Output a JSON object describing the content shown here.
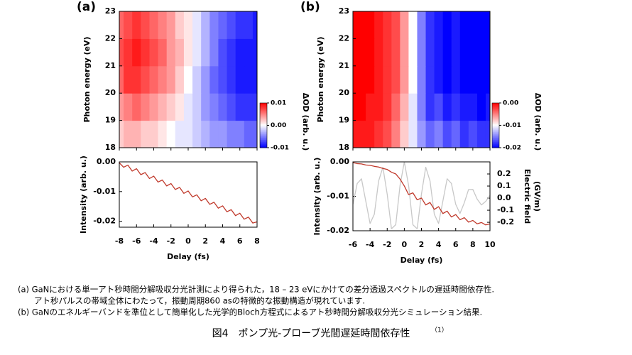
{
  "chart_data": [
    {
      "type": "heatmap",
      "panel_label": "(a)",
      "x": [
        -8,
        -7,
        -6,
        -5,
        -4,
        -3,
        -2,
        -1,
        0,
        1,
        2,
        3,
        4,
        5,
        6,
        7,
        8
      ],
      "y": [
        18.5,
        19.5,
        20.5,
        21.5,
        22.5
      ],
      "z": [
        [
          0.002,
          0.003,
          0.003,
          0.002,
          0.002,
          0.001,
          0.0,
          -0.001,
          -0.001,
          -0.002,
          -0.003,
          -0.004,
          -0.004,
          -0.005,
          -0.005,
          -0.006,
          -0.006
        ],
        [
          0.004,
          0.005,
          0.006,
          0.005,
          0.004,
          0.003,
          0.002,
          0.001,
          -0.001,
          -0.002,
          -0.004,
          -0.005,
          -0.006,
          -0.007,
          -0.008,
          -0.008,
          -0.008
        ],
        [
          0.006,
          0.008,
          0.008,
          0.007,
          0.006,
          0.005,
          0.004,
          0.002,
          0.0,
          -0.002,
          -0.004,
          -0.006,
          -0.007,
          -0.008,
          -0.009,
          -0.009,
          -0.009
        ],
        [
          0.007,
          0.008,
          0.009,
          0.008,
          0.007,
          0.006,
          0.004,
          0.003,
          0.001,
          -0.001,
          -0.003,
          -0.005,
          -0.007,
          -0.008,
          -0.009,
          -0.009,
          -0.009
        ],
        [
          0.006,
          0.007,
          0.008,
          0.007,
          0.006,
          0.005,
          0.004,
          0.002,
          0.001,
          -0.001,
          -0.003,
          -0.005,
          -0.006,
          -0.007,
          -0.008,
          -0.008,
          -0.009
        ]
      ],
      "xlim": [
        -8,
        8
      ],
      "ylim": [
        18,
        23
      ],
      "yticks": [
        18,
        19,
        20,
        21,
        22,
        23
      ],
      "ylabel": "Photon energy (eV)",
      "colorbar": {
        "label": "ΔOD (arb. u.)",
        "clim": [
          -0.01,
          0.01
        ],
        "ticks": [
          0.01,
          {
            "value": 0,
            "label": "0.00"
          },
          -0.01
        ],
        "colors": [
          "#0000ff",
          "#ffffff",
          "#ff0000"
        ]
      }
    },
    {
      "type": "line",
      "x": [
        -8,
        -7.5,
        -7,
        -6.5,
        -6,
        -5.5,
        -5,
        -4.5,
        -4,
        -3.5,
        -3,
        -2.5,
        -2,
        -1.5,
        -1,
        -0.5,
        0,
        0.5,
        1,
        1.5,
        2,
        2.5,
        3,
        3.5,
        4,
        4.5,
        5,
        5.5,
        6,
        6.5,
        7,
        7.5,
        8
      ],
      "series": [
        {
          "color": "#c0392b",
          "values": [
            -0.0003,
            -0.0018,
            -0.0011,
            -0.0031,
            -0.0023,
            -0.0043,
            -0.0036,
            -0.0056,
            -0.0048,
            -0.0068,
            -0.0061,
            -0.0081,
            -0.0073,
            -0.0093,
            -0.0086,
            -0.0106,
            -0.0098,
            -0.0118,
            -0.0111,
            -0.0131,
            -0.0123,
            -0.0143,
            -0.0136,
            -0.0156,
            -0.0148,
            -0.0168,
            -0.0161,
            -0.0181,
            -0.0173,
            -0.0193,
            -0.0186,
            -0.0206,
            -0.0202
          ]
        }
      ],
      "xlim": [
        -8,
        8
      ],
      "xticks": [
        -8,
        -6,
        -4,
        -2,
        0,
        2,
        4,
        6,
        8
      ],
      "xlabel": "Delay (fs)",
      "ylim": [
        -0.022,
        0
      ],
      "yticks": [
        {
          "value": 0,
          "label": "0.00"
        },
        -0.01,
        -0.02
      ],
      "ylabel": "Intensity (arb. u.)"
    },
    {
      "type": "heatmap",
      "panel_label": "(b)",
      "x": [
        -6,
        -5,
        -4,
        -3,
        -2,
        -1,
        0,
        1,
        2,
        3,
        4,
        5,
        6,
        7,
        8,
        9,
        10
      ],
      "y": [
        18.5,
        19.5,
        20.5,
        21.5,
        22.5
      ],
      "z": [
        [
          -0.001,
          -0.001,
          -0.001,
          -0.002,
          -0.003,
          -0.005,
          -0.008,
          -0.011,
          -0.014,
          -0.016,
          -0.015,
          -0.017,
          -0.016,
          -0.018,
          -0.017,
          -0.018,
          -0.018
        ],
        [
          0,
          0,
          -0.001,
          -0.001,
          -0.002,
          -0.004,
          -0.007,
          -0.011,
          -0.015,
          -0.018,
          -0.017,
          -0.019,
          -0.018,
          -0.019,
          -0.019,
          -0.02,
          -0.019
        ],
        [
          0,
          0,
          0,
          -0.001,
          -0.002,
          -0.003,
          -0.006,
          -0.01,
          -0.015,
          -0.018,
          -0.019,
          -0.02,
          -0.019,
          -0.02,
          -0.02,
          -0.02,
          -0.02
        ],
        [
          0,
          0,
          0,
          -0.001,
          -0.002,
          -0.003,
          -0.006,
          -0.01,
          -0.015,
          -0.018,
          -0.019,
          -0.02,
          -0.019,
          -0.02,
          -0.02,
          -0.02,
          -0.02
        ],
        [
          0,
          0,
          0,
          -0.001,
          -0.002,
          -0.003,
          -0.006,
          -0.01,
          -0.015,
          -0.018,
          -0.019,
          -0.02,
          -0.019,
          -0.02,
          -0.02,
          -0.02,
          -0.02
        ]
      ],
      "xlim": [
        -6,
        10
      ],
      "ylim": [
        18,
        23
      ],
      "yticks": [
        18,
        19,
        20,
        21,
        22,
        23
      ],
      "ylabel": "Photon energy (eV)",
      "colorbar": {
        "label": "ΔOD (arb. u.)",
        "clim": [
          -0.02,
          0
        ],
        "ticks": [
          {
            "value": 0,
            "label": "0.00"
          },
          -0.01,
          -0.02
        ],
        "colors": [
          "#0000ff",
          "#ffffff",
          "#ff0000"
        ]
      }
    },
    {
      "type": "line",
      "x": [
        -6,
        -5.5,
        -5,
        -4.5,
        -4,
        -3.5,
        -3,
        -2.5,
        -2,
        -1.5,
        -1,
        -0.5,
        0,
        0.5,
        1,
        1.5,
        2,
        2.5,
        3,
        3.5,
        4,
        4.5,
        5,
        5.5,
        6,
        6.5,
        7,
        7.5,
        8,
        8.5,
        9,
        9.5,
        10
      ],
      "series": [
        {
          "color": "#c0392b",
          "values": [
            -0.0002,
            -0.0005,
            -0.0006,
            -0.0009,
            -0.001,
            -0.0013,
            -0.0015,
            -0.0019,
            -0.0022,
            -0.003,
            -0.0035,
            -0.005,
            -0.007,
            -0.0095,
            -0.009,
            -0.011,
            -0.0105,
            -0.0125,
            -0.0118,
            -0.0138,
            -0.013,
            -0.015,
            -0.0143,
            -0.016,
            -0.0153,
            -0.0168,
            -0.0162,
            -0.0175,
            -0.017,
            -0.018,
            -0.0176,
            -0.0183,
            -0.018
          ]
        },
        {
          "color": "#c8c8c8",
          "axis": "y2",
          "values": [
            -0.051,
            0.121,
            0.16,
            -0.025,
            -0.21,
            -0.133,
            0.142,
            0.256,
            0.033,
            -0.254,
            -0.22,
            0.105,
            0.3,
            0.105,
            -0.22,
            -0.254,
            0.033,
            0.256,
            0.142,
            -0.133,
            -0.21,
            -0.025,
            0.16,
            0.121,
            -0.051,
            -0.127,
            -0.039,
            0.071,
            0.072,
            -0.008,
            -0.056,
            -0.027,
            0.022
          ]
        }
      ],
      "xlim": [
        -6,
        10
      ],
      "xticks": [
        -6,
        -4,
        -2,
        0,
        2,
        4,
        6,
        8,
        10
      ],
      "xlabel": "Delay (fs)",
      "ylim": [
        -0.02,
        0
      ],
      "yticks": [
        {
          "value": 0,
          "label": "0.00"
        },
        -0.01,
        -0.02
      ],
      "ylabel": "Intensity (arb. u.)",
      "y2lim": [
        -0.27,
        0.3
      ],
      "y2ticks": [
        0.2,
        0.1,
        {
          "value": 0,
          "label": "0.0"
        },
        -0.1,
        -0.2
      ],
      "y2label": [
        "Electric field",
        "(GV/m)"
      ]
    }
  ],
  "caption": {
    "lines": [
      "(a) GaNにおける単一アト秒時間分解吸収分光計測により得られた，18 – 23 eVにかけての差分透過スペクトルの遅延時間依存性.",
      "アト秒パルスの帯域全体にわたって，振動周期860 asの特徴的な振動構造が現れています.",
      "(b) GaNのエネルギーバンドを準位として簡単化した光学的Bloch方程式によるアト秒時間分解吸収分光シミュレーション結果."
    ],
    "figure_title": "図4　ポンプ光-プローブ光間遅延時間依存性",
    "citation": "（1）"
  }
}
